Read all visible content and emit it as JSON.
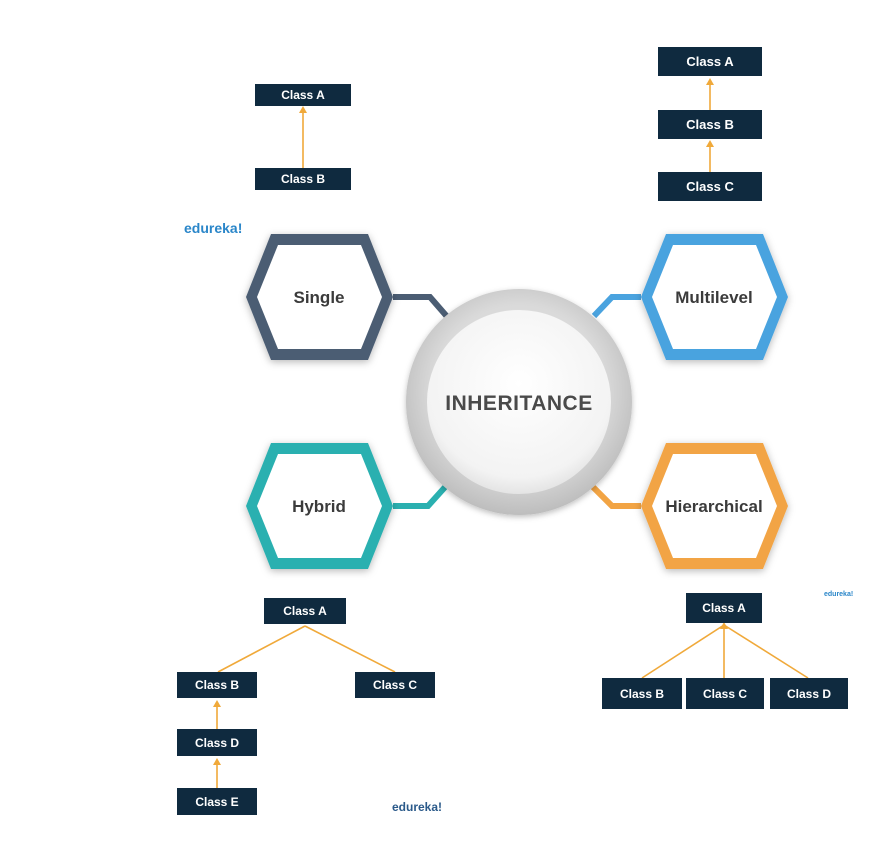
{
  "center": {
    "label": "INHERITANCE"
  },
  "types": {
    "single": {
      "label": "Single",
      "color": "#4b5d73"
    },
    "multilevel": {
      "label": "Multilevel",
      "color": "#4aa3df"
    },
    "hybrid": {
      "label": "Hybrid",
      "color": "#2ab0b0"
    },
    "hierarchical": {
      "label": "Hierarchical",
      "color": "#f2a444"
    }
  },
  "single_diagram": {
    "parent": "Class A",
    "child": "Class B"
  },
  "multilevel_diagram": {
    "top": "Class A",
    "middle": "Class B",
    "bottom": "Class C"
  },
  "hybrid_diagram": {
    "root": "Class A",
    "left": "Class B",
    "right": "Class C",
    "left_child": "Class D",
    "left_grandchild": "Class E"
  },
  "hierarchical_diagram": {
    "root": "Class A",
    "child1": "Class B",
    "child2": "Class C",
    "child3": "Class D"
  },
  "branding": {
    "top_left": "edureka!",
    "bottom_center": "edureka!",
    "right_small": "edureka!"
  },
  "colors": {
    "box_fill": "#0f2a3f",
    "arrow": "#f0a93a"
  }
}
